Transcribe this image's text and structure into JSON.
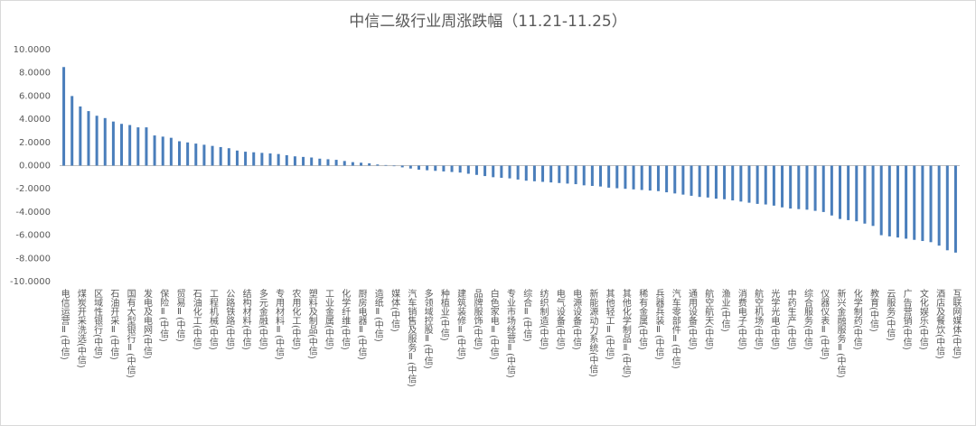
{
  "chart_data": {
    "type": "bar",
    "title": "中信二级行业周涨跌幅（11.21-11.25）",
    "color": "#4a7ebb",
    "categories": [
      "电信运营Ⅱ(中信)",
      null,
      "煤炭开采洗选(中信)",
      null,
      "区域性银行(中信)",
      null,
      "石油开采Ⅱ(中信)",
      null,
      "国有大型银行Ⅱ(中信)",
      null,
      "发电及电网(中信)",
      null,
      "保险Ⅱ(中信)",
      null,
      "贸易Ⅱ(中信)",
      null,
      "石油化工(中信)",
      null,
      "工程机械(中信)",
      null,
      "公路铁路(中信)",
      null,
      "结构材料(中信)",
      null,
      "多元金融(中信)",
      null,
      "专用材料Ⅱ(中信)",
      null,
      "农用化工(中信)",
      null,
      "塑料及制品(中信)",
      null,
      "工业金属(中信)",
      null,
      "化学纤维(中信)",
      null,
      "厨房电器Ⅱ(中信)",
      null,
      "造纸Ⅱ(中信)",
      null,
      "媒体(中信)",
      null,
      "汽车销售及服务Ⅱ(中信)",
      null,
      "多领域控股Ⅱ(中信)",
      null,
      "种植业(中信)",
      null,
      "建筑装修Ⅱ(中信)",
      null,
      "品牌服饰(中信)",
      null,
      "白色家电Ⅱ(中信)",
      null,
      "专业市场经营Ⅱ(中信)",
      null,
      "综合Ⅱ(中信)",
      null,
      "纺织制造(中信)",
      null,
      "电气设备(中信)",
      null,
      "电源设备(中信)",
      null,
      "新能源动力系统(中信)",
      null,
      "其他轻工Ⅱ(中信)",
      null,
      "其他化学制品Ⅱ(中信)",
      null,
      "稀有金属(中信)",
      null,
      "兵器兵装Ⅱ(中信)",
      null,
      "汽车零部件Ⅱ(中信)",
      null,
      "通用设备(中信)",
      null,
      "航空航天(中信)",
      null,
      "渔业(中信)",
      null,
      "消费电子(中信)",
      null,
      "航空机场(中信)",
      null,
      "光学光电(中信)",
      null,
      "中药生产(中信)",
      null,
      "综合服务(中信)",
      null,
      "仪器仪表Ⅱ(中信)",
      null,
      "新兴金融服务Ⅱ(中信)",
      null,
      "化学制药(中信)",
      null,
      "教育(中信)",
      null,
      "云服务(中信)",
      null,
      "广告营销(中信)",
      null,
      "文化娱乐(中信)",
      null,
      "酒店及餐饮(中信)",
      null,
      "互联网媒体(中信)"
    ],
    "values": [
      8.5,
      6.0,
      5.1,
      4.7,
      4.3,
      4.1,
      3.8,
      3.6,
      3.5,
      3.3,
      3.3,
      2.6,
      2.5,
      2.4,
      2.1,
      2.0,
      1.9,
      1.8,
      1.7,
      1.6,
      1.5,
      1.3,
      1.2,
      1.15,
      1.1,
      1.05,
      1.0,
      0.9,
      0.8,
      0.75,
      0.7,
      0.6,
      0.55,
      0.5,
      0.4,
      0.3,
      0.25,
      0.2,
      0.1,
      0.05,
      -0.05,
      -0.15,
      -0.25,
      -0.35,
      -0.4,
      -0.45,
      -0.5,
      -0.55,
      -0.6,
      -0.7,
      -0.8,
      -0.9,
      -1.0,
      -1.05,
      -1.1,
      -1.2,
      -1.3,
      -1.35,
      -1.4,
      -1.45,
      -1.5,
      -1.55,
      -1.6,
      -1.7,
      -1.75,
      -1.8,
      -1.9,
      -1.95,
      -2.0,
      -2.05,
      -2.1,
      -2.15,
      -2.2,
      -2.3,
      -2.4,
      -2.5,
      -2.6,
      -2.7,
      -2.75,
      -2.85,
      -2.9,
      -3.0,
      -3.1,
      -3.2,
      -3.3,
      -3.35,
      -3.45,
      -3.6,
      -3.7,
      -3.75,
      -3.8,
      -3.9,
      -4.0,
      -4.3,
      -4.6,
      -4.7,
      -4.8,
      -5.0,
      -5.2,
      -6.0,
      -6.1,
      -6.2,
      -6.3,
      -6.4,
      -6.5,
      -6.6,
      -6.9,
      -7.3,
      -7.5
    ],
    "ylim": [
      -10,
      10
    ],
    "yticks": [
      {
        "value": -10,
        "label": "-10.0000"
      },
      {
        "value": -8,
        "label": "-8.0000"
      },
      {
        "value": -6,
        "label": "-6.0000"
      },
      {
        "value": -4,
        "label": "-4.0000"
      },
      {
        "value": -2,
        "label": "-2.0000"
      },
      {
        "value": 0,
        "label": "0.0000"
      },
      {
        "value": 2,
        "label": "2.0000"
      },
      {
        "value": 4,
        "label": "4.0000"
      },
      {
        "value": 6,
        "label": "6.0000"
      },
      {
        "value": 8,
        "label": "8.0000"
      },
      {
        "value": 10,
        "label": "10.0000"
      }
    ],
    "grid": false
  }
}
